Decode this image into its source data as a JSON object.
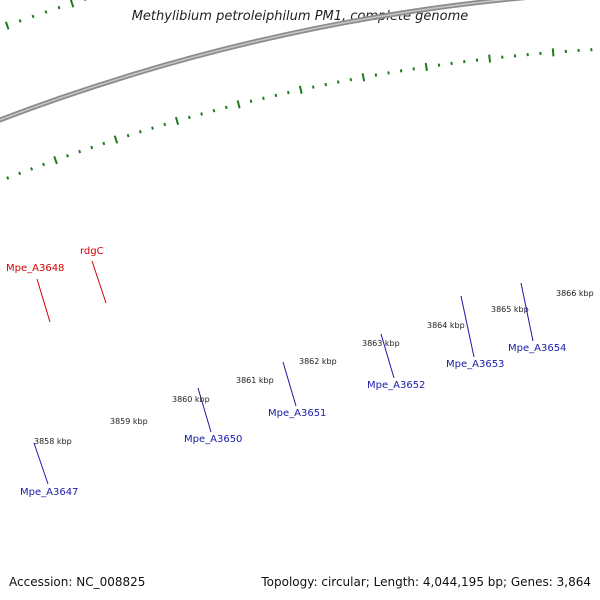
{
  "title": "Methylibium petroleiphilum PM1, complete genome",
  "footer": {
    "accession": "Accession: NC_008825",
    "info": "Topology: circular; Length: 4,044,195 bp; Genes: 3,864"
  },
  "colors": {
    "backbone": "#8a8a8a",
    "tick_marks": "#1e7a1e",
    "label_red": "#d40000",
    "label_blue": "#1a1aa8"
  },
  "ticks": [
    {
      "label": "3858 kbp"
    },
    {
      "label": "3859 kbp"
    },
    {
      "label": "3860 kbp"
    },
    {
      "label": "3861 kbp"
    },
    {
      "label": "3862 kbp"
    },
    {
      "label": "3863 kbp"
    },
    {
      "label": "3864 kbp"
    },
    {
      "label": "3865 kbp"
    },
    {
      "label": "3866 kbp"
    }
  ],
  "gene_labels": [
    {
      "text": "Mpe_A3648",
      "color": "#d40000"
    },
    {
      "text": "rdgC",
      "color": "#d40000"
    },
    {
      "text": "Mpe_A3647",
      "color": "#1a1aa8"
    },
    {
      "text": "Mpe_A3650",
      "color": "#1a1aa8"
    },
    {
      "text": "Mpe_A3651",
      "color": "#1a1aa8"
    },
    {
      "text": "Mpe_A3652",
      "color": "#1a1aa8"
    },
    {
      "text": "Mpe_A3653",
      "color": "#1a1aa8"
    },
    {
      "text": "Mpe_A3654",
      "color": "#1a1aa8"
    }
  ],
  "feature_colors": {
    "forward_cds": "#1010e8",
    "reverse_cds": "#0c0c72",
    "rna_red": "#ee0000",
    "rna_pink": "#e8209a",
    "cyan": "#20c8d0",
    "steel": "#5a80b8",
    "gray": "#6e6e6e"
  }
}
